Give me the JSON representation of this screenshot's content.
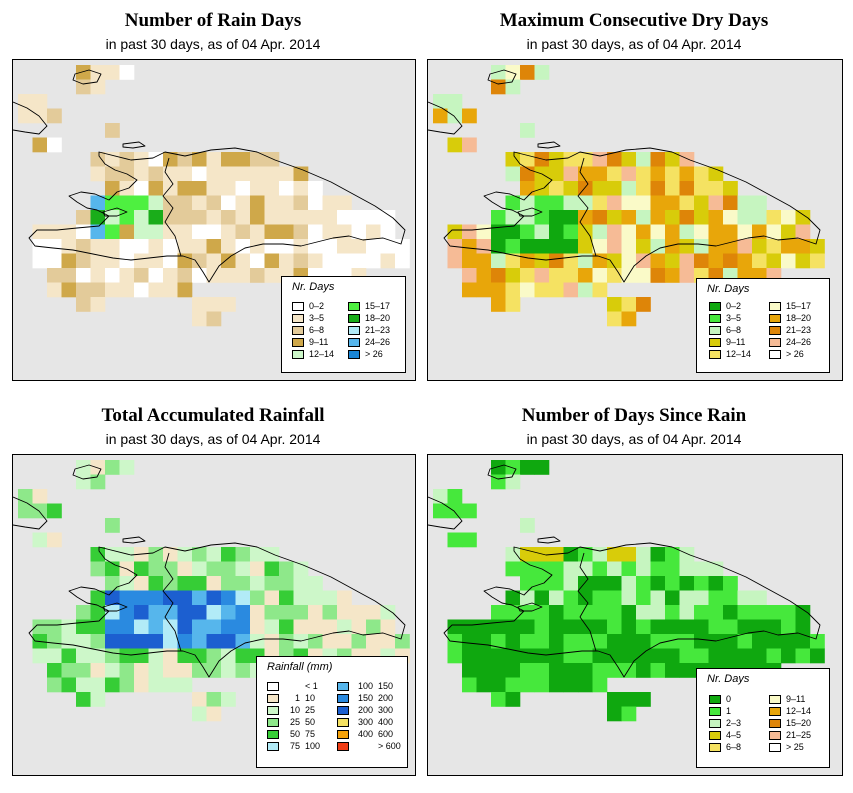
{
  "panels": [
    {
      "id": "rain-days",
      "title": "Number of Rain Days",
      "subtitle": "in past 30 days, as of  04 Apr. 2014",
      "legend": {
        "title": "Nr. Days",
        "columns": [
          [
            {
              "label": "0–2",
              "color": "#ffffff"
            },
            {
              "label": "3–5",
              "color": "#f5e6c8"
            },
            {
              "label": "6–8",
              "color": "#e3cb9a"
            },
            {
              "label": "9–11",
              "color": "#cfa84a"
            },
            {
              "label": "12–14",
              "color": "#cdf7c9"
            }
          ],
          [
            {
              "label": "15–17",
              "color": "#4ef040"
            },
            {
              "label": "18–20",
              "color": "#1aad1a"
            },
            {
              "label": "21–23",
              "color": "#b2ebf7"
            },
            {
              "label": "24–26",
              "color": "#56b6ec"
            },
            {
              "label": "> 26",
              "color": "#1a86d6"
            }
          ]
        ]
      }
    },
    {
      "id": "max-dry-days",
      "title": "Maximum Consecutive Dry Days",
      "subtitle": "in past 30 days, as of  04 Apr. 2014",
      "legend": {
        "title": "Nr. Days",
        "columns": [
          [
            {
              "label": "0–2",
              "color": "#0fa80f"
            },
            {
              "label": "3–5",
              "color": "#46e83c"
            },
            {
              "label": "6–8",
              "color": "#c6f5c0"
            },
            {
              "label": "9–11",
              "color": "#d8cc0a"
            },
            {
              "label": "12–14",
              "color": "#f5e262"
            }
          ],
          [
            {
              "label": "15–17",
              "color": "#fafac8"
            },
            {
              "label": "18–20",
              "color": "#e8a60a"
            },
            {
              "label": "21–23",
              "color": "#de8508"
            },
            {
              "label": "24–26",
              "color": "#f6bb96"
            },
            {
              "label": "> 26",
              "color": "#ffffff"
            }
          ]
        ]
      }
    },
    {
      "id": "total-rainfall",
      "title": "Total Accumulated Rainfall",
      "subtitle": "in past 30 days, as of  04 Apr. 2014",
      "legend": {
        "title": "Rainfall (mm)",
        "columns": [
          [
            {
              "a": "",
              "b": "< 1",
              "color": "#ffffff"
            },
            {
              "a": "1",
              "b": "10",
              "color": "#f5e6c8"
            },
            {
              "a": "10",
              "b": "25",
              "color": "#cdf7c9"
            },
            {
              "a": "25",
              "b": "50",
              "color": "#8ee88a"
            },
            {
              "a": "50",
              "b": "75",
              "color": "#36cd36"
            },
            {
              "a": "75",
              "b": "100",
              "color": "#b2ebf7"
            }
          ],
          [
            {
              "a": "100",
              "b": "150",
              "color": "#56b6ec"
            },
            {
              "a": "150",
              "b": "200",
              "color": "#2a8ae0"
            },
            {
              "a": "200",
              "b": "300",
              "color": "#1c5fd0"
            },
            {
              "a": "300",
              "b": "400",
              "color": "#f5e262"
            },
            {
              "a": "400",
              "b": "600",
              "color": "#f5a20a"
            },
            {
              "a": "",
              "b": "> 600",
              "color": "#f03c14"
            }
          ]
        ]
      }
    },
    {
      "id": "days-since-rain",
      "title": "Number of Days Since Rain",
      "subtitle": "in past 30 days, as of  04 Apr. 2014",
      "legend": {
        "title": "Nr. Days",
        "columns": [
          [
            {
              "label": "0",
              "color": "#0fa80f"
            },
            {
              "label": "1",
              "color": "#46e83c"
            },
            {
              "label": "2–3",
              "color": "#c6f5c0"
            },
            {
              "label": "4–5",
              "color": "#d8cc0a"
            },
            {
              "label": "6–8",
              "color": "#f5e262"
            }
          ],
          [
            {
              "label": "9–11",
              "color": "#fafac8"
            },
            {
              "label": "12–14",
              "color": "#e8a60a"
            },
            {
              "label": "15–20",
              "color": "#de8508"
            },
            {
              "label": "21–25",
              "color": "#f6bb96"
            },
            {
              "label": "> 25",
              "color": "#ffffff"
            }
          ]
        ]
      }
    }
  ]
}
